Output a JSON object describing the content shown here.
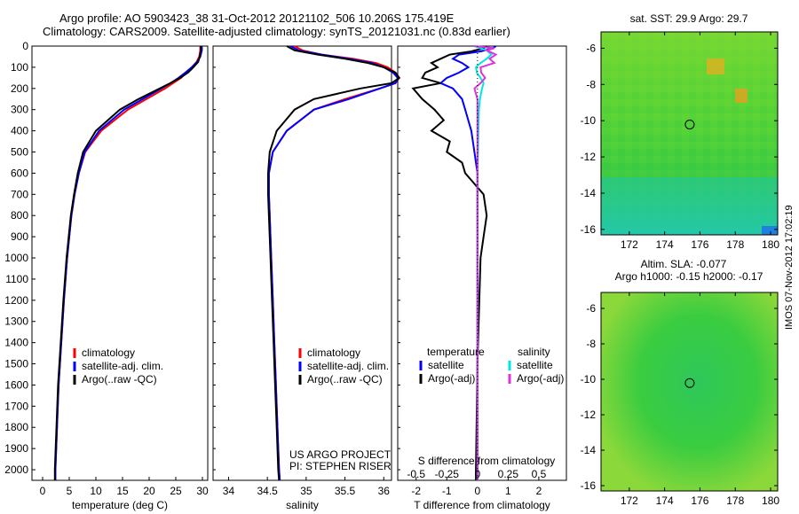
{
  "title_line1": "Argo profile: AO 5903423_38 31-Oct-2012 20121102_506 10.206S 175.419E",
  "title_line2": "Climatology: CARS2009. Satellite-adjusted climatology: synTS_20121031.nc (0.83d earlier)",
  "side_stamp": "IMOS 07-Nov-2012 17:02:19",
  "colors": {
    "climatology": "#ff0000",
    "satellite": "#0000ff",
    "argo": "#000000",
    "t_satellite": "#00e6e6",
    "t_argo": "#dd33dd"
  },
  "chart_data": [
    {
      "type": "line",
      "id": "temperature-profile",
      "xlabel": "temperature (deg C)",
      "xlim": [
        -2,
        31
      ],
      "xticks": [
        0,
        5,
        10,
        15,
        20,
        25,
        30
      ],
      "ylim": [
        0,
        2050
      ],
      "yticks": [
        0,
        100,
        200,
        300,
        400,
        500,
        600,
        700,
        800,
        900,
        1000,
        1100,
        1200,
        1300,
        1400,
        1500,
        1600,
        1700,
        1800,
        1900,
        2000
      ],
      "y_inverted": true,
      "legend": [
        "climatology",
        "satellite-adj. clim.",
        "Argo(..raw -QC)"
      ],
      "series": [
        {
          "name": "climatology",
          "y": [
            0,
            20,
            50,
            75,
            100,
            125,
            150,
            175,
            200,
            250,
            300,
            400,
            500,
            600,
            700,
            800,
            900,
            1000,
            1200,
            1400,
            1600,
            1800,
            2000,
            2050
          ],
          "values": [
            29.6,
            29.6,
            29.4,
            28.9,
            28.0,
            27.0,
            26.0,
            24.5,
            23.0,
            19.5,
            16.0,
            11.0,
            8.0,
            6.8,
            6.0,
            5.4,
            5.0,
            4.6,
            4.0,
            3.5,
            3.0,
            2.7,
            2.4,
            2.4
          ]
        },
        {
          "name": "satellite-adj. clim.",
          "y": [
            0,
            20,
            50,
            75,
            100,
            125,
            150,
            175,
            200,
            250,
            300,
            400,
            500,
            600,
            700,
            800,
            900,
            1000,
            1200,
            1400,
            1600,
            1800,
            2000,
            2050
          ],
          "values": [
            29.9,
            29.9,
            29.6,
            29.0,
            28.0,
            26.8,
            25.5,
            24.0,
            22.3,
            18.8,
            15.3,
            10.6,
            7.9,
            6.8,
            6.0,
            5.4,
            5.0,
            4.6,
            4.0,
            3.5,
            3.0,
            2.7,
            2.4,
            2.4
          ]
        },
        {
          "name": "Argo(..raw -QC)",
          "y": [
            0,
            20,
            50,
            75,
            100,
            125,
            150,
            175,
            200,
            250,
            300,
            400,
            500,
            600,
            700,
            800,
            900,
            1000,
            1200,
            1400,
            1600,
            1800,
            2000,
            2050
          ],
          "values": [
            29.7,
            29.7,
            29.5,
            29.2,
            28.3,
            27.3,
            25.8,
            24.0,
            22.0,
            18.0,
            14.5,
            10.0,
            7.6,
            6.6,
            5.9,
            5.3,
            4.9,
            4.5,
            3.9,
            3.4,
            2.9,
            2.6,
            2.3,
            2.3
          ]
        }
      ]
    },
    {
      "type": "line",
      "id": "salinity-profile",
      "xlabel": "salinity",
      "xlim": [
        33.8,
        36.1
      ],
      "xticks": [
        34,
        34.5,
        35,
        35.5,
        36
      ],
      "ylim": [
        0,
        2050
      ],
      "y_inverted": true,
      "legend": [
        "climatology",
        "satellite-adj. clim.",
        "Argo(..raw -QC)"
      ],
      "annotation": [
        "US ARGO PROJECT",
        "PI: STEPHEN RISER"
      ],
      "series": [
        {
          "name": "climatology",
          "y": [
            0,
            20,
            40,
            60,
            80,
            100,
            125,
            150,
            175,
            200,
            250,
            300,
            400,
            500,
            600,
            700,
            800,
            1000,
            1200,
            1400,
            1600,
            1800,
            2000,
            2050
          ],
          "values": [
            34.85,
            34.95,
            35.2,
            35.6,
            35.9,
            36.05,
            36.15,
            36.2,
            36.15,
            35.95,
            35.5,
            35.1,
            34.75,
            34.57,
            34.52,
            34.52,
            34.53,
            34.55,
            34.57,
            34.59,
            34.61,
            34.63,
            34.65,
            34.66
          ]
        },
        {
          "name": "satellite-adj. clim.",
          "y": [
            0,
            20,
            40,
            60,
            80,
            100,
            125,
            150,
            175,
            200,
            250,
            300,
            400,
            500,
            600,
            700,
            800,
            1000,
            1200,
            1400,
            1600,
            1800,
            2000,
            2050
          ],
          "values": [
            34.8,
            34.9,
            35.2,
            35.55,
            35.85,
            36.0,
            36.12,
            36.18,
            36.15,
            35.95,
            35.55,
            35.1,
            34.75,
            34.57,
            34.52,
            34.52,
            34.53,
            34.55,
            34.57,
            34.59,
            34.61,
            34.63,
            34.65,
            34.66
          ]
        },
        {
          "name": "Argo(..raw -QC)",
          "y": [
            0,
            20,
            40,
            60,
            80,
            100,
            125,
            150,
            175,
            200,
            250,
            300,
            400,
            500,
            600,
            700,
            800,
            1000,
            1200,
            1400,
            1600,
            1800,
            2000,
            2050
          ],
          "values": [
            34.75,
            34.85,
            35.15,
            35.5,
            35.8,
            36.0,
            36.15,
            36.2,
            36.1,
            35.7,
            35.1,
            34.85,
            34.62,
            34.53,
            34.51,
            34.51,
            34.52,
            34.54,
            34.56,
            34.58,
            34.6,
            34.62,
            34.64,
            34.65
          ]
        }
      ]
    },
    {
      "type": "line",
      "id": "difference-profile",
      "xlabel": "T difference from climatology",
      "xlabel_top": "S difference from climatology",
      "xlim": [
        -2.6,
        2.9
      ],
      "xticks": [
        -2,
        -1,
        0,
        1,
        2
      ],
      "xticks_top": [
        "-0.5",
        "-0.25",
        "0",
        "0.25",
        "0.5"
      ],
      "ylim": [
        0,
        2050
      ],
      "y_inverted": true,
      "legend_left": [
        "temperature",
        "satellite",
        "Argo(-adj)"
      ],
      "legend_right": [
        "salinity",
        "satellite",
        "Argo(-adj)"
      ],
      "series": [
        {
          "name": "temperature satellite",
          "y": [
            0,
            10,
            25,
            40,
            60,
            80,
            100,
            125,
            150,
            175,
            200,
            250,
            300,
            400,
            500,
            600,
            800,
            1000,
            1500,
            2000,
            2050
          ],
          "values": [
            0.6,
            0.5,
            0.1,
            -0.6,
            -0.8,
            -0.5,
            -0.3,
            -0.6,
            -1.0,
            -1.2,
            -0.8,
            -0.5,
            -0.4,
            -0.2,
            -0.1,
            0.0,
            0.0,
            0.0,
            0.0,
            0.0,
            0.0
          ]
        },
        {
          "name": "temperature Argo(-adj)",
          "y": [
            0,
            10,
            25,
            40,
            60,
            80,
            100,
            125,
            150,
            175,
            200,
            250,
            300,
            350,
            400,
            450,
            500,
            550,
            600,
            650,
            700,
            800,
            900,
            1000,
            1500,
            2000,
            2050
          ],
          "values": [
            0.3,
            0.2,
            -0.2,
            -0.9,
            -1.2,
            -1.5,
            -1.3,
            -1.7,
            -1.8,
            -1.2,
            -2.1,
            -1.8,
            -1.4,
            -1.1,
            -1.5,
            -0.9,
            -1.0,
            -0.5,
            -0.4,
            -0.1,
            0.2,
            0.3,
            0.2,
            0.1,
            0.0,
            -0.05,
            -0.05
          ]
        },
        {
          "name": "salinity satellite",
          "y": [
            0,
            10,
            20,
            40,
            60,
            80,
            100,
            125,
            150,
            175,
            200,
            250,
            300,
            400,
            500,
            600,
            800,
            1000,
            1500,
            2000,
            2050
          ],
          "values": [
            -0.1,
            0.1,
            0.3,
            0.45,
            0.3,
            0.1,
            -0.05,
            -0.02,
            0.1,
            0.2,
            0.15,
            0.08,
            0.05,
            0.03,
            0.02,
            0.0,
            0.0,
            0.0,
            0.0,
            0.0,
            0.0
          ]
        },
        {
          "name": "salinity Argo(-adj)",
          "y": [
            0,
            10,
            20,
            40,
            60,
            80,
            100,
            125,
            150,
            175,
            200,
            250,
            300,
            400,
            500,
            600,
            800,
            1000,
            1500,
            2000,
            2050
          ],
          "values": [
            -0.1,
            0.55,
            0.3,
            0.6,
            0.4,
            0.55,
            0.1,
            0.12,
            0.25,
            0.1,
            -0.1,
            0.0,
            0.0,
            0.0,
            0.0,
            0.0,
            0.0,
            0.0,
            0.0,
            0.0,
            0.0
          ]
        }
      ]
    },
    {
      "type": "heatmap",
      "id": "sst-map",
      "title": "sat. SST: 29.9 Argo: 29.7",
      "xticks": [
        172,
        174,
        176,
        178,
        180
      ],
      "yticks": [
        -6,
        -8,
        -10,
        -12,
        -14,
        -16
      ],
      "xlim": [
        170.4,
        180.4
      ],
      "ylim": [
        -16.3,
        -5.1
      ],
      "marker": {
        "lon": 175.42,
        "lat": -10.21
      }
    },
    {
      "type": "heatmap",
      "id": "sla-map",
      "title": "Altim. SLA: -0.077",
      "subtitle": "Argo h1000: -0.15 h2000: -0.17",
      "xticks": [
        172,
        174,
        176,
        178,
        180
      ],
      "yticks": [
        -6,
        -8,
        -10,
        -12,
        -14,
        -16
      ],
      "xlim": [
        170.4,
        180.4
      ],
      "ylim": [
        -16.3,
        -5.1
      ],
      "marker": {
        "lon": 175.42,
        "lat": -10.21
      }
    }
  ]
}
